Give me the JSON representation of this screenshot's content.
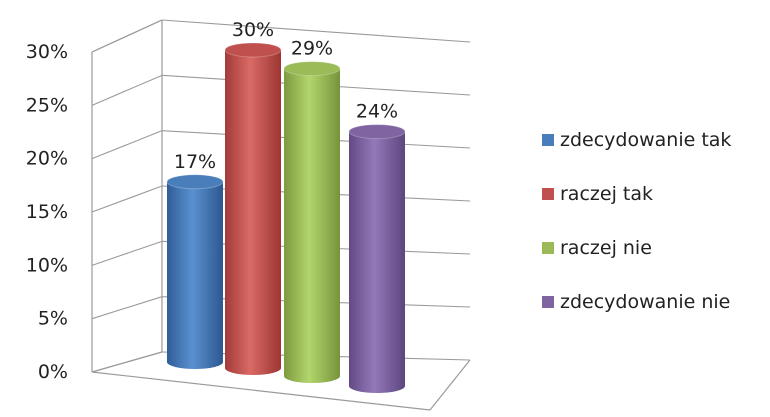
{
  "chart_data": {
    "type": "bar",
    "style": "3d-cylinder",
    "categories": [
      "zdecydowanie tak",
      "raczej tak",
      "raczej nie",
      "zdecydowanie nie"
    ],
    "values": [
      17,
      30,
      29,
      24
    ],
    "data_labels": [
      "17%",
      "30%",
      "29%",
      "24%"
    ],
    "y_ticks": [
      "0%",
      "5%",
      "10%",
      "15%",
      "20%",
      "25%",
      "30%"
    ],
    "ylim": [
      0,
      30
    ],
    "grid": true,
    "legend": {
      "position": "right",
      "entries": [
        "zdecydowanie tak",
        "raczej tak",
        "raczej nie",
        "zdecydowanie nie"
      ]
    },
    "colors": [
      "#4a7ebb",
      "#c0504d",
      "#9bbb59",
      "#8064a2"
    ]
  }
}
